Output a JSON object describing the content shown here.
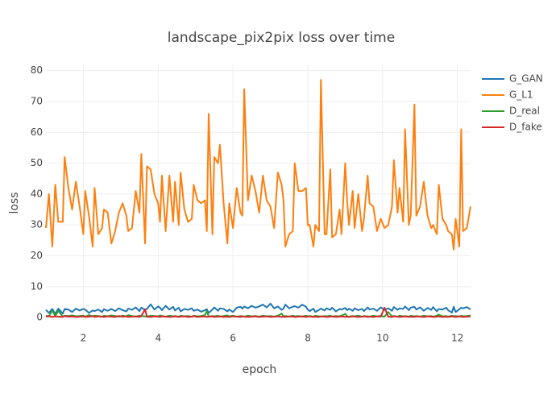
{
  "chart_data": {
    "type": "line",
    "title": "landscape_pix2pix loss over time",
    "x_label": "epoch",
    "y_label": "loss",
    "x": [
      1.0,
      1.08,
      1.17,
      1.25,
      1.33,
      1.45,
      1.5,
      1.6,
      1.7,
      1.8,
      1.9,
      2.0,
      2.05,
      2.15,
      2.25,
      2.3,
      2.4,
      2.5,
      2.55,
      2.65,
      2.75,
      2.85,
      2.95,
      3.05,
      3.15,
      3.2,
      3.3,
      3.4,
      3.5,
      3.55,
      3.65,
      3.7,
      3.8,
      3.9,
      4.0,
      4.05,
      4.1,
      4.2,
      4.3,
      4.4,
      4.45,
      4.55,
      4.6,
      4.7,
      4.8,
      4.9,
      4.95,
      5.05,
      5.15,
      5.25,
      5.3,
      5.35,
      5.45,
      5.5,
      5.6,
      5.65,
      5.75,
      5.85,
      5.9,
      6.0,
      6.1,
      6.2,
      6.25,
      6.3,
      6.4,
      6.5,
      6.6,
      6.7,
      6.8,
      6.9,
      7.0,
      7.1,
      7.2,
      7.3,
      7.35,
      7.4,
      7.5,
      7.6,
      7.65,
      7.75,
      7.85,
      7.95,
      8.0,
      8.05,
      8.15,
      8.2,
      8.3,
      8.35,
      8.45,
      8.5,
      8.6,
      8.65,
      8.75,
      8.85,
      8.9,
      9.0,
      9.05,
      9.1,
      9.2,
      9.25,
      9.35,
      9.45,
      9.5,
      9.6,
      9.65,
      9.75,
      9.85,
      9.95,
      10.05,
      10.15,
      10.25,
      10.3,
      10.4,
      10.45,
      10.55,
      10.6,
      10.7,
      10.75,
      10.85,
      10.9,
      11.0,
      11.1,
      11.2,
      11.3,
      11.35,
      11.45,
      11.5,
      11.6,
      11.7,
      11.75,
      11.85,
      11.9,
      11.95,
      12.05,
      12.1,
      12.15,
      12.25,
      12.35
    ],
    "series": [
      {
        "name": "G_GAN",
        "color": "#1f77b4",
        "values": [
          2.5,
          1.5,
          2.8,
          1.2,
          2.9,
          1.3,
          2.8,
          2.6,
          1.8,
          2.9,
          2.3,
          2.8,
          2.6,
          1.5,
          2.3,
          2.1,
          2.6,
          1.8,
          2.7,
          2.2,
          2.8,
          2.1,
          3.0,
          2.4,
          2.0,
          2.9,
          2.5,
          3.3,
          2.1,
          3.2,
          2.5,
          2.8,
          4.3,
          2.6,
          3.6,
          3.2,
          2.4,
          3.8,
          2.6,
          3.5,
          2.3,
          3.2,
          2.0,
          2.8,
          2.5,
          3.0,
          2.2,
          2.6,
          1.9,
          2.4,
          2.7,
          1.5,
          2.6,
          3.3,
          2.2,
          3.0,
          2.8,
          2.0,
          2.6,
          1.8,
          3.2,
          3.5,
          2.9,
          3.6,
          3.0,
          3.8,
          3.2,
          3.6,
          4.2,
          3.3,
          4.5,
          3.0,
          3.6,
          2.5,
          2.9,
          4.2,
          3.0,
          3.5,
          3.7,
          3.2,
          4.2,
          3.5,
          2.6,
          2.1,
          2.9,
          1.8,
          2.5,
          2.9,
          2.3,
          3.0,
          2.5,
          3.2,
          2.0,
          2.8,
          2.6,
          3.1,
          2.4,
          2.9,
          2.2,
          3.0,
          2.4,
          2.8,
          2.1,
          3.3,
          2.6,
          2.9,
          2.2,
          3.3,
          2.5,
          3.0,
          2.2,
          3.4,
          2.5,
          3.0,
          2.8,
          3.6,
          2.4,
          3.2,
          3.5,
          2.6,
          3.3,
          2.2,
          3.1,
          2.5,
          3.4,
          2.0,
          2.8,
          2.6,
          3.2,
          2.4,
          1.6,
          3.5,
          1.8,
          2.7,
          3.2,
          3.0,
          3.4,
          2.6
        ]
      },
      {
        "name": "G_L1",
        "color": "#ff7f0e",
        "values": [
          29,
          40,
          23,
          43,
          31,
          31,
          52,
          42,
          35,
          44,
          36,
          27,
          41,
          33,
          23,
          42,
          27,
          29,
          35,
          34,
          24,
          28,
          34,
          37,
          33,
          28,
          29,
          41,
          34,
          53,
          24,
          49,
          48,
          40,
          37,
          31,
          46,
          28,
          46,
          31,
          44,
          30,
          47,
          35,
          31,
          32,
          43,
          38,
          37,
          38,
          28,
          66,
          27,
          52,
          50,
          56,
          37,
          24,
          37,
          29,
          42,
          34,
          33,
          74,
          38,
          46,
          41,
          34,
          46,
          38,
          36,
          29,
          47,
          43,
          38,
          23,
          27,
          28,
          50,
          41,
          41,
          42,
          30,
          30,
          23,
          30,
          28,
          77,
          27,
          27,
          48,
          26,
          27,
          35,
          27,
          50,
          38,
          30,
          41,
          29,
          40,
          28,
          32,
          46,
          37,
          36,
          28,
          32,
          29,
          30,
          36,
          51,
          34,
          42,
          31,
          61,
          30,
          33,
          69,
          33,
          36,
          44,
          33,
          29,
          30,
          27,
          43,
          32,
          30,
          28,
          27,
          22,
          32,
          23,
          61,
          28,
          29,
          36
        ]
      },
      {
        "name": "D_real",
        "color": "#2ca02c",
        "values": [
          0.6,
          0.4,
          2.3,
          0.5,
          2.2,
          0.3,
          0.6,
          0.5,
          0.7,
          0.4,
          0.5,
          0.6,
          0.3,
          0.8,
          0.4,
          0.6,
          0.5,
          0.3,
          0.6,
          0.4,
          0.7,
          0.5,
          0.3,
          0.6,
          0.4,
          0.8,
          0.5,
          0.3,
          0.6,
          0.5,
          0.4,
          0.3,
          0.6,
          0.5,
          0.4,
          0.7,
          0.5,
          0.3,
          0.6,
          0.4,
          0.5,
          0.3,
          0.6,
          0.4,
          0.5,
          0.3,
          0.6,
          0.4,
          0.5,
          0.8,
          2.2,
          0.3,
          0.5,
          0.4,
          0.6,
          0.3,
          0.5,
          0.7,
          0.4,
          0.6,
          0.3,
          0.5,
          0.4,
          0.3,
          0.6,
          0.4,
          0.5,
          0.3,
          0.6,
          0.4,
          0.5,
          0.3,
          0.6,
          1.3,
          0.4,
          0.5,
          0.3,
          0.6,
          0.4,
          0.5,
          0.3,
          0.6,
          0.4,
          0.5,
          0.3,
          0.6,
          0.4,
          0.3,
          0.5,
          0.4,
          0.6,
          0.3,
          0.5,
          0.4,
          0.6,
          1.2,
          0.4,
          0.3,
          0.5,
          0.4,
          0.6,
          0.3,
          0.5,
          0.4,
          0.3,
          0.6,
          0.4,
          0.5,
          0.3,
          1.8,
          0.4,
          0.5,
          0.3,
          0.6,
          0.4,
          0.5,
          0.3,
          0.6,
          0.4,
          0.5,
          0.3,
          0.6,
          0.4,
          0.5,
          0.3,
          0.6,
          1.0,
          0.4,
          0.5,
          0.3,
          0.6,
          0.4,
          0.5,
          0.3,
          0.6,
          0.4,
          0.5,
          0.7
        ]
      },
      {
        "name": "D_fake",
        "color": "#d62728",
        "values": [
          0.3,
          0.5,
          0.2,
          0.4,
          0.3,
          0.2,
          0.5,
          0.3,
          0.4,
          0.2,
          0.3,
          0.4,
          0.2,
          0.3,
          0.5,
          0.2,
          0.4,
          0.3,
          0.2,
          0.4,
          0.3,
          0.2,
          0.5,
          0.3,
          0.4,
          0.2,
          0.3,
          0.4,
          0.2,
          0.5,
          2.7,
          0.3,
          0.2,
          0.4,
          0.3,
          0.2,
          0.4,
          0.3,
          0.2,
          0.3,
          0.4,
          0.2,
          0.3,
          0.4,
          0.2,
          0.3,
          0.5,
          0.2,
          0.3,
          0.4,
          0.2,
          0.3,
          0.4,
          0.2,
          0.3,
          0.4,
          0.2,
          0.3,
          0.2,
          0.4,
          0.3,
          0.2,
          0.4,
          0.3,
          0.2,
          0.3,
          0.4,
          0.2,
          0.3,
          0.4,
          0.2,
          0.3,
          0.4,
          0.2,
          0.3,
          0.2,
          0.4,
          0.3,
          0.2,
          0.3,
          0.4,
          0.2,
          0.3,
          0.4,
          0.2,
          0.3,
          0.2,
          0.4,
          0.3,
          0.2,
          0.3,
          0.4,
          0.2,
          0.3,
          0.4,
          0.2,
          0.3,
          0.2,
          0.4,
          0.3,
          0.2,
          0.3,
          0.4,
          0.2,
          0.3,
          0.2,
          0.4,
          0.3,
          3.2,
          0.3,
          0.2,
          0.4,
          0.3,
          0.2,
          0.3,
          0.4,
          0.2,
          0.3,
          0.2,
          0.4,
          0.3,
          0.2,
          0.4,
          0.3,
          0.2,
          0.3,
          0.4,
          0.2,
          0.3,
          0.2,
          0.4,
          0.3,
          0.2,
          0.4,
          0.3,
          0.2,
          0.3,
          0.4
        ]
      }
    ],
    "xlim": [
      1,
      12.35
    ],
    "ylim": [
      -1,
      82
    ],
    "xticks": [
      2,
      4,
      6,
      8,
      10,
      12
    ],
    "yticks": [
      0,
      10,
      20,
      30,
      40,
      50,
      60,
      70,
      80
    ],
    "grid": true,
    "legend": "right"
  }
}
